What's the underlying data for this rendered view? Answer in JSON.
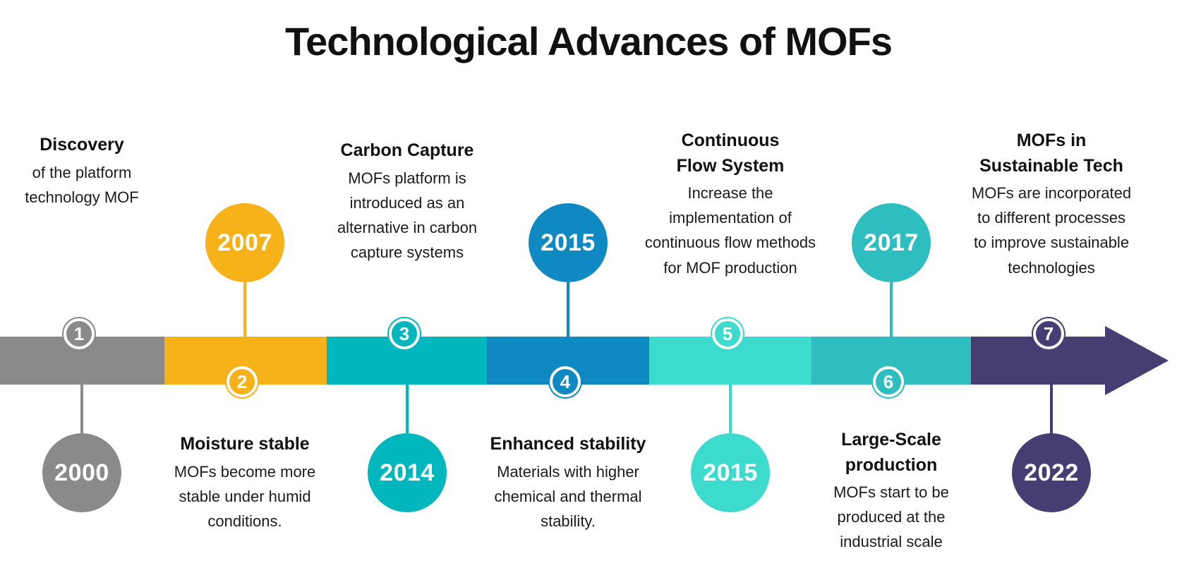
{
  "title": "Technological Advances of MOFs",
  "colors": {
    "background": "#FFFFFF",
    "text": "#111111",
    "gray": "#8A8A8A",
    "yellow": "#F7B219",
    "teal": "#00B7BE",
    "blue": "#0F89C1",
    "light_teal": "#3CDBCD",
    "medium_teal": "#2FBEC0",
    "purple": "#463D72"
  },
  "timeline": {
    "items": [
      {
        "number": "1",
        "year": "2000",
        "year_position": "below",
        "color": "#8A8A8A",
        "heading": "Discovery",
        "body": "of the platform\ntechnology MOF"
      },
      {
        "number": "2",
        "year": "2007",
        "year_position": "above",
        "color": "#F7B219",
        "heading": "Moisture stable",
        "body": "MOFs become more\nstable under humid\nconditions."
      },
      {
        "number": "3",
        "year": "2014",
        "year_position": "below",
        "color": "#00B7BE",
        "heading": "Carbon Capture",
        "body": "MOFs platform is\nintroduced as an\nalternative in carbon\ncapture systems"
      },
      {
        "number": "4",
        "year": "2015",
        "year_position": "above",
        "color": "#0F89C1",
        "heading": "Enhanced stability",
        "body": "Materials with higher\nchemical and thermal\nstability."
      },
      {
        "number": "5",
        "year": "2015",
        "year_position": "below",
        "color": "#3CDBCD",
        "heading": "Continuous\nFlow System",
        "body": "Increase the\nimplementation of\ncontinuous flow methods\nfor MOF production"
      },
      {
        "number": "6",
        "year": "2017",
        "year_position": "above",
        "color": "#2FBEC0",
        "heading": "Large-Scale\nproduction",
        "body": "MOFs start to be\nproduced at the\nindustrial scale"
      },
      {
        "number": "7",
        "year": "2022",
        "year_position": "below",
        "color": "#463D72",
        "heading": "MOFs in\nSustainable Tech",
        "body": "MOFs are incorporated\nto different processes\nto improve sustainable\ntechnologies"
      }
    ]
  }
}
